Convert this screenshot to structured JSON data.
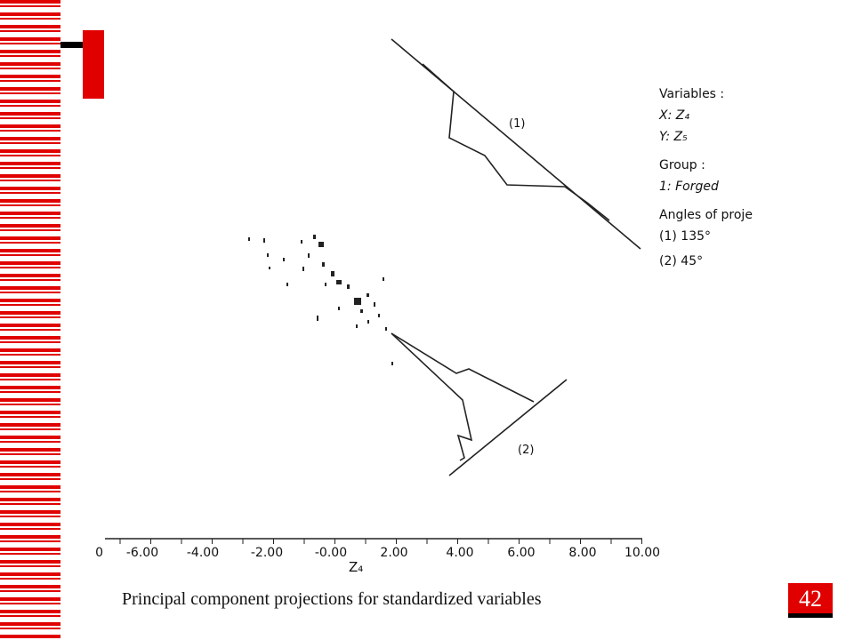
{
  "figure": {
    "labels": {
      "proj1": "(1)",
      "proj2": "(2)"
    },
    "legend": [
      "Variables :",
      "X: Z₄",
      "Y: Z₅",
      "Group :",
      "1: Forged",
      "Angles of proje",
      "(1)  135°",
      "(2)  45°"
    ],
    "x_axis": {
      "ticks": [
        "0",
        "-6.00",
        "-4.00",
        "-2.00",
        "-0.00",
        "2.00",
        "4.00",
        "6.00",
        "8.00",
        "10.00"
      ],
      "label": "Z₄"
    },
    "caption": "Principal component projections for standardized variables"
  },
  "slide": {
    "page_number": "42"
  }
}
